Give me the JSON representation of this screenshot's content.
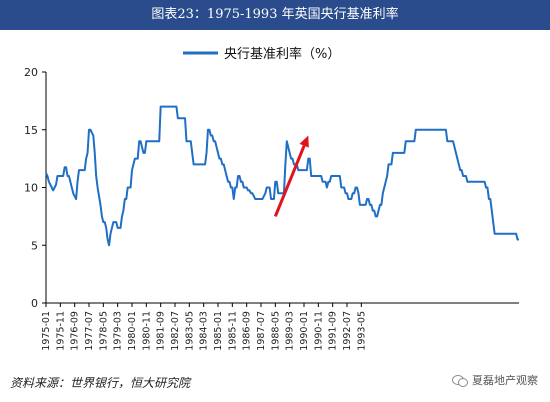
{
  "header": {
    "title": "图表23：1975-1993 年英国央行基准利率"
  },
  "footer": {
    "source": "资料来源：世界银行，恒大研究院",
    "watermark": "夏磊地产观察"
  },
  "colors": {
    "title_bg": "#2a4c8c",
    "line": "#1f6fc5",
    "arrow": "#e0141e"
  },
  "chart_data": {
    "type": "line",
    "title": "",
    "xlabel": "",
    "ylabel": "",
    "ylim": [
      0,
      20
    ],
    "yticks": [
      0,
      5,
      10,
      15,
      20
    ],
    "legend": "top-center",
    "x_start": "1975-01",
    "x_step_months": 1,
    "x_ticks": [
      "1975-01",
      "1975-11",
      "1976-09",
      "1977-07",
      "1978-05",
      "1979-03",
      "1980-01",
      "1980-11",
      "1981-09",
      "1982-07",
      "1983-05",
      "1984-03",
      "1985-01",
      "1985-11",
      "1986-09",
      "1987-07",
      "1988-05",
      "1989-03",
      "1990-01",
      "1990-11",
      "1991-09",
      "1992-07",
      "1993-05"
    ],
    "series": [
      {
        "name": "央行基准利率（%）",
        "values": [
          11.25,
          11,
          10.5,
          10.25,
          10,
          9.75,
          10,
          10.25,
          11,
          11,
          11,
          11,
          11,
          11.75,
          11.75,
          11,
          11,
          10.5,
          10,
          9.5,
          9.25,
          9,
          10.5,
          11.5,
          11.5,
          11.5,
          11.5,
          11.5,
          12.5,
          13,
          15,
          15,
          14.75,
          14.5,
          13,
          11,
          10,
          9.25,
          8.5,
          7.5,
          7,
          7,
          6.5,
          5.5,
          5,
          6,
          6.5,
          7,
          7,
          7,
          6.5,
          6.5,
          6.5,
          7.5,
          8,
          9,
          9,
          10,
          10,
          10,
          11.5,
          12,
          12.5,
          12.5,
          12.5,
          14,
          14,
          13.5,
          13,
          13,
          14,
          14,
          14,
          14,
          14,
          14,
          14,
          14,
          14,
          14,
          17,
          17,
          17,
          17,
          17,
          17,
          17,
          17,
          17,
          17,
          17,
          17,
          16,
          16,
          16,
          16,
          16,
          16,
          14,
          14,
          14,
          14,
          13,
          12,
          12,
          12,
          12,
          12,
          12,
          12,
          12,
          12,
          13,
          15,
          15,
          14.5,
          14.5,
          14,
          14,
          13.5,
          13,
          12.5,
          12.5,
          12,
          12,
          11.5,
          11,
          10.5,
          10.5,
          10,
          10,
          9,
          10,
          10,
          11,
          11,
          10.5,
          10.5,
          10,
          10,
          10,
          9.75,
          9.75,
          9.5,
          9.5,
          9.25,
          9,
          9,
          9,
          9,
          9,
          9,
          9.25,
          9.5,
          10,
          10,
          10,
          9,
          9,
          9,
          10.5,
          10.5,
          9.5,
          9.5,
          9.5,
          9.5,
          9.5,
          12,
          14,
          13.5,
          13,
          12.5,
          12.5,
          12,
          12,
          12,
          11.5,
          11.5,
          11.5,
          11.5,
          11.5,
          11.5,
          11.5,
          12.5,
          12.5,
          11,
          11,
          11,
          11,
          11,
          11,
          11,
          11,
          10.5,
          10.5,
          10.5,
          10,
          10.5,
          10.5,
          11,
          11,
          11,
          11,
          11,
          11,
          11,
          10,
          10,
          10,
          9.5,
          9.5,
          9,
          9,
          9,
          9.5,
          9.5,
          10,
          10,
          9.5,
          8.5,
          8.5,
          8.5,
          8.5,
          8.5,
          9,
          9,
          8.5,
          8.5,
          8,
          8,
          7.5,
          7.5,
          8,
          8.5,
          8.5,
          9.5,
          10,
          10.5,
          11,
          12,
          12,
          12,
          13,
          13,
          13,
          13,
          13,
          13,
          13,
          13,
          13,
          14,
          14,
          14,
          14,
          14,
          14,
          14,
          15,
          15,
          15,
          15,
          15,
          15,
          15,
          15,
          15,
          15,
          15,
          15,
          15,
          15,
          15,
          15,
          15,
          15,
          15,
          15,
          15,
          15,
          14,
          14,
          14,
          14,
          14,
          13.5,
          13,
          12.5,
          12,
          11.5,
          11.5,
          11,
          11,
          11,
          10.5,
          10.5,
          10.5,
          10.5,
          10.5,
          10.5,
          10.5,
          10.5,
          10.5,
          10.5,
          10.5,
          10.5,
          10.5,
          10,
          10,
          9,
          9,
          8,
          7,
          6,
          6,
          6,
          6,
          6,
          6,
          6,
          6,
          6,
          6,
          6,
          6,
          6,
          6,
          6,
          6,
          5.5,
          5.5
        ]
      }
    ],
    "annotation": {
      "type": "arrow",
      "from": [
        "1988-05",
        7.5
      ],
      "to": [
        "1990-04",
        14.5
      ]
    }
  }
}
